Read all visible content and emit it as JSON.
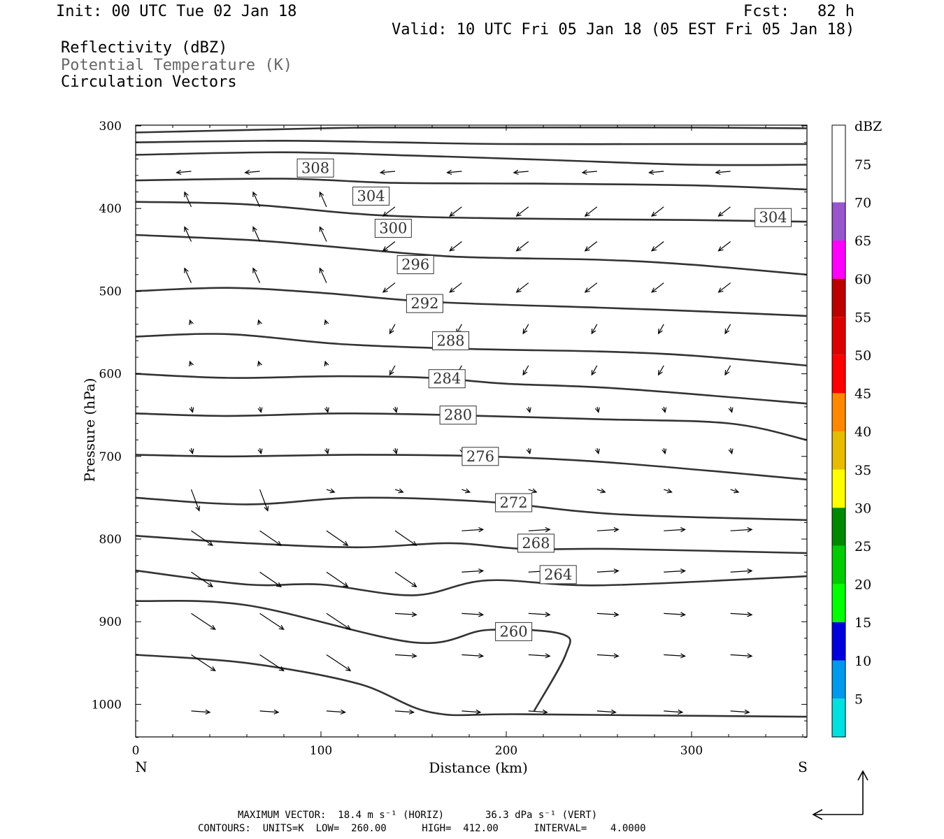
{
  "header": {
    "init": "Init: 00 UTC Tue 02 Jan 18",
    "fcst": "Fcst:   82 h",
    "valid": "Valid: 10 UTC Fri 05 Jan 18 (05 EST Fri 05 Jan 18)",
    "field1": "Reflectivity (dBZ)",
    "field2": "Potential Temperature (K)",
    "field3": "Circulation Vectors"
  },
  "footer": {
    "line1": "MAXIMUM VECTOR:  18.4 m s⁻¹ (HORIZ)       36.3 dPa s⁻¹ (VERT)",
    "line2": "CONTOURS:  UNITS=K  LOW=  260.00      HIGH=  412.00      INTERVAL=    4.0000"
  },
  "colorbar": {
    "title": "dBZ",
    "levels": [
      "5",
      "10",
      "15",
      "20",
      "25",
      "30",
      "35",
      "40",
      "45",
      "50",
      "55",
      "60",
      "65",
      "70",
      "75"
    ],
    "colors": [
      "#00e0e0",
      "#0099ee",
      "#0000dd",
      "#00ff00",
      "#00cc00",
      "#008800",
      "#ffff00",
      "#e6bb00",
      "#ff8800",
      "#ff0000",
      "#dd0000",
      "#bb0000",
      "#ff00ff",
      "#9955cc"
    ]
  },
  "chart_data": {
    "type": "cross-section",
    "xlabel": "Distance (km)",
    "ylabel": "Pressure (hPa)",
    "x_ticks": [
      0,
      100,
      200,
      300
    ],
    "y_ticks": [
      300,
      400,
      500,
      600,
      700,
      800,
      900,
      1000
    ],
    "xlim": [
      0,
      362
    ],
    "ylim": [
      300,
      1040
    ],
    "left_label": "N",
    "right_label": "S",
    "contours": [
      {
        "label": "308",
        "label_at": [
          97,
          351
        ],
        "points": [
          [
            0,
            308
          ],
          [
            60,
            305
          ],
          [
            100,
            303
          ],
          [
            130,
            302
          ],
          [
            200,
            302
          ],
          [
            300,
            302
          ],
          [
            362,
            303
          ]
        ]
      },
      {
        "label": "",
        "label_at": null,
        "points": [
          [
            0,
            320
          ],
          [
            80,
            318
          ],
          [
            140,
            320
          ],
          [
            200,
            322
          ],
          [
            300,
            322
          ],
          [
            362,
            322
          ]
        ]
      },
      {
        "label": "",
        "label_at": null,
        "points": [
          [
            0,
            335
          ],
          [
            80,
            332
          ],
          [
            150,
            336
          ],
          [
            220,
            341
          ],
          [
            300,
            347
          ],
          [
            362,
            347
          ]
        ]
      },
      {
        "label": "304",
        "label_at": [
          127,
          385
        ],
        "points": [
          [
            0,
            366
          ],
          [
            80,
            364
          ],
          [
            140,
            369
          ],
          [
            220,
            370
          ],
          [
            300,
            372
          ],
          [
            362,
            377
          ]
        ]
      },
      {
        "label": "304",
        "label_at": [
          344,
          411
        ],
        "points": [
          [
            0,
            392
          ],
          [
            60,
            395
          ],
          [
            130,
            408
          ],
          [
            200,
            412
          ],
          [
            300,
            414
          ],
          [
            362,
            416
          ]
        ]
      },
      {
        "label": "300",
        "label_at": [
          139,
          424
        ],
        "points": [
          [
            0,
            432
          ],
          [
            60,
            438
          ],
          [
            100,
            445
          ],
          [
            170,
            458
          ],
          [
            250,
            462
          ],
          [
            300,
            468
          ],
          [
            362,
            480
          ]
        ]
      },
      {
        "label": "296",
        "label_at": [
          151,
          468
        ],
        "points": [
          [
            0,
            500
          ],
          [
            50,
            496
          ],
          [
            100,
            502
          ],
          [
            160,
            513
          ],
          [
            250,
            520
          ],
          [
            300,
            524
          ],
          [
            362,
            530
          ]
        ]
      },
      {
        "label": "292",
        "label_at": [
          156,
          515
        ],
        "points": [
          [
            0,
            555
          ],
          [
            50,
            552
          ],
          [
            110,
            564
          ],
          [
            180,
            570
          ],
          [
            250,
            573
          ],
          [
            300,
            578
          ],
          [
            362,
            590
          ]
        ]
      },
      {
        "label": "288",
        "label_at": [
          170,
          560
        ],
        "points": [
          [
            0,
            600
          ],
          [
            50,
            605
          ],
          [
            110,
            603
          ],
          [
            160,
            605
          ],
          [
            200,
            612
          ],
          [
            262,
            618
          ],
          [
            362,
            636
          ]
        ]
      },
      {
        "label": "284",
        "label_at": [
          168,
          606
        ],
        "points": [
          [
            0,
            648
          ],
          [
            50,
            651
          ],
          [
            110,
            648
          ],
          [
            170,
            650
          ],
          [
            250,
            655
          ],
          [
            320,
            660
          ],
          [
            362,
            680
          ]
        ]
      },
      {
        "label": "280",
        "label_at": [
          174,
          650
        ],
        "points": [
          [
            0,
            698
          ],
          [
            50,
            700
          ],
          [
            120,
            698
          ],
          [
            190,
            700
          ],
          [
            260,
            708
          ],
          [
            362,
            728
          ]
        ]
      },
      {
        "label": "276",
        "label_at": [
          186,
          700
        ],
        "points": [
          [
            0,
            750
          ],
          [
            60,
            758
          ],
          [
            120,
            750
          ],
          [
            190,
            755
          ],
          [
            260,
            770
          ],
          [
            362,
            777
          ]
        ]
      },
      {
        "label": "272",
        "label_at": [
          204,
          756
        ],
        "points": [
          [
            0,
            796
          ],
          [
            60,
            805
          ],
          [
            120,
            810
          ],
          [
            170,
            805
          ],
          [
            210,
            812
          ],
          [
            260,
            812
          ],
          [
            362,
            817
          ]
        ]
      },
      {
        "label": "268",
        "label_at": [
          216,
          805
        ],
        "points": [
          [
            0,
            838
          ],
          [
            60,
            855
          ],
          [
            100,
            855
          ],
          [
            150,
            868
          ],
          [
            190,
            850
          ],
          [
            250,
            856
          ],
          [
            362,
            845
          ]
        ]
      },
      {
        "label": "264",
        "label_at": [
          228,
          843
        ],
        "points": [
          [
            0,
            875
          ],
          [
            60,
            880
          ],
          [
            150,
            925
          ],
          [
            190,
            910
          ],
          [
            230,
            915
          ],
          [
            232,
            940
          ],
          [
            215,
            1008
          ]
        ]
      },
      {
        "label": "260",
        "label_at": [
          204,
          912
        ],
        "points": [
          [
            0,
            940
          ],
          [
            60,
            950
          ],
          [
            120,
            975
          ],
          [
            160,
            1010
          ],
          [
            210,
            1012
          ],
          [
            362,
            1015
          ]
        ]
      }
    ]
  }
}
